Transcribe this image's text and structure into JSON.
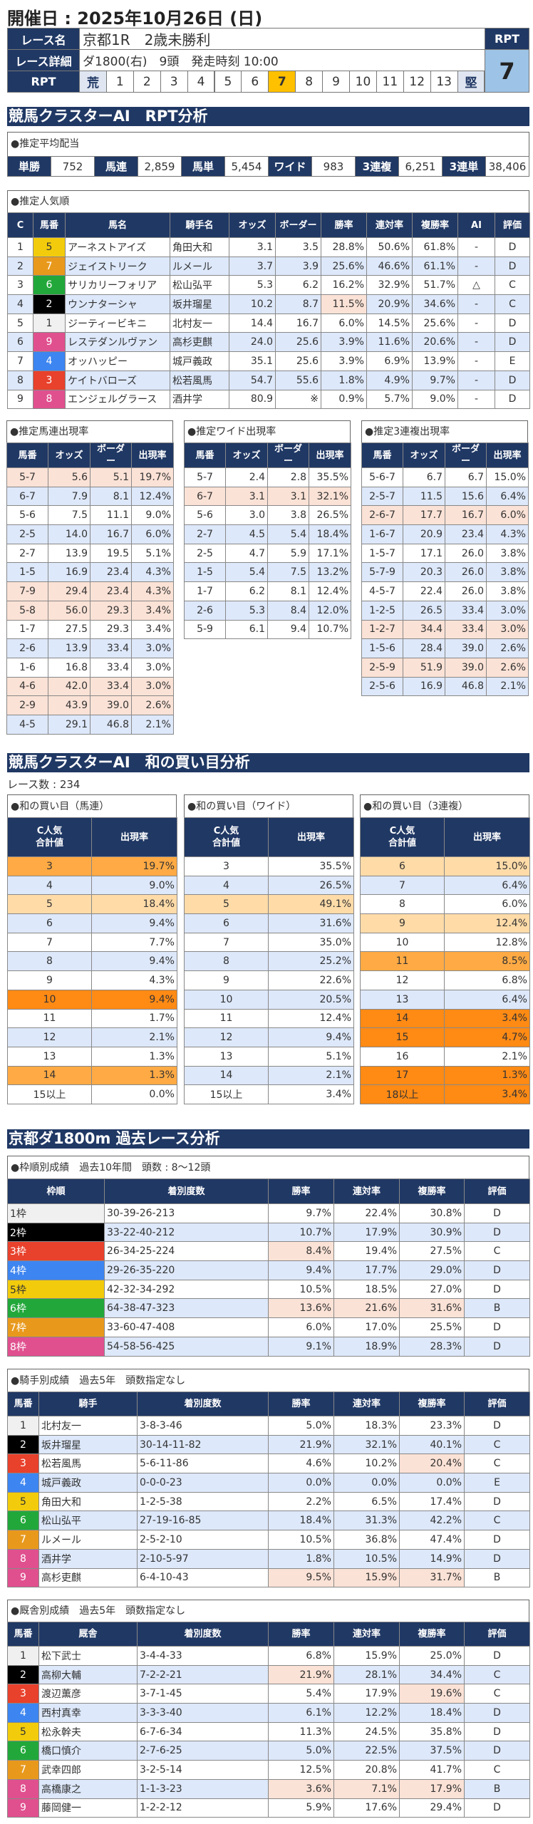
{
  "header": {
    "title": "開催日 : 2025年10月26日 (日)"
  },
  "race": {
    "labels": [
      "レース名",
      "レース詳細",
      "RPT"
    ],
    "name": "京都1R　2歳未勝利",
    "detail": "ダ1800(右)　9頭　発走時刻 10:00",
    "rpt_scale": [
      "荒",
      "1",
      "2",
      "3",
      "4",
      "5",
      "6",
      "7",
      "8",
      "9",
      "10",
      "11",
      "12",
      "13",
      "堅"
    ],
    "rpt_selected": "7",
    "rpt_label": "RPT",
    "rpt_value": "7"
  },
  "colors": {
    "navy": "#203864",
    "selected": "#ffc000",
    "rpt_value_bg": "#9dc3e6",
    "scale_end_bg": "#dfe6f2"
  },
  "waku_colors": {
    "1": [
      "#f0f0f0",
      "#333"
    ],
    "2": [
      "#000000",
      "#fff"
    ],
    "3": [
      "#e8412c",
      "#fff"
    ],
    "4": [
      "#3d85f0",
      "#fff"
    ],
    "5": [
      "#f2cc0c",
      "#333"
    ],
    "6": [
      "#22a83a",
      "#fff"
    ],
    "7": [
      "#e8991c",
      "#fff"
    ],
    "8": [
      "#e0508f",
      "#fff"
    ]
  },
  "rpt_section": {
    "title": "競馬クラスターAI　RPT分析"
  },
  "payout": {
    "title": "●推定平均配当",
    "items": [
      {
        "label": "単勝",
        "value": "752"
      },
      {
        "label": "馬連",
        "value": "2,859"
      },
      {
        "label": "馬単",
        "value": "5,454"
      },
      {
        "label": "ワイド",
        "value": "983"
      },
      {
        "label": "3連複",
        "value": "6,251"
      },
      {
        "label": "3連単",
        "value": "38,406"
      }
    ]
  },
  "popularity": {
    "title": "●推定人気順",
    "headers": [
      "C",
      "馬番",
      "馬名",
      "騎手名",
      "オッズ",
      "ボーダー",
      "勝率",
      "連対率",
      "複勝率",
      "AI",
      "評価"
    ],
    "rows": [
      {
        "cells": [
          "1",
          "5",
          "アーネストアイズ",
          "角田大和",
          "3.1",
          "3.5",
          "28.8%",
          "50.6%",
          "61.8%",
          "-",
          "D"
        ]
      },
      {
        "cells": [
          "2",
          "7",
          "ジェイストリーク",
          "ルメール",
          "3.7",
          "3.9",
          "25.6%",
          "46.6%",
          "61.1%",
          "-",
          "D"
        ]
      },
      {
        "cells": [
          "3",
          "6",
          "サリカリーフォリア",
          "松山弘平",
          "5.3",
          "6.2",
          "16.2%",
          "32.9%",
          "51.7%",
          "△",
          "C"
        ]
      },
      {
        "cells": [
          "4",
          "2",
          "ウンナターシャ",
          "坂井瑠星",
          "10.2",
          "8.7",
          "11.5%",
          "20.9%",
          "34.6%",
          "-",
          "C"
        ],
        "hl": [
          6
        ]
      },
      {
        "cells": [
          "5",
          "1",
          "ジーティービキニ",
          "北村友一",
          "14.4",
          "16.7",
          "6.0%",
          "14.5%",
          "25.6%",
          "-",
          "D"
        ]
      },
      {
        "cells": [
          "6",
          "9",
          "レステダンルヴァン",
          "高杉吏麒",
          "24.0",
          "25.6",
          "3.9%",
          "11.6%",
          "20.6%",
          "-",
          "D"
        ]
      },
      {
        "cells": [
          "7",
          "4",
          "オッハッピー",
          "城戸義政",
          "35.1",
          "25.6",
          "3.9%",
          "6.9%",
          "13.9%",
          "-",
          "E"
        ]
      },
      {
        "cells": [
          "8",
          "3",
          "ケイトバローズ",
          "松若風馬",
          "54.7",
          "55.6",
          "1.8%",
          "4.9%",
          "9.7%",
          "-",
          "D"
        ]
      },
      {
        "cells": [
          "9",
          "8",
          "エンジェルグラース",
          "酒井学",
          "80.9",
          "※",
          "0.9%",
          "5.7%",
          "9.0%",
          "-",
          "D"
        ]
      }
    ]
  },
  "umaren": {
    "title": "●推定馬連出現率",
    "headers": [
      "馬番",
      "オッズ",
      "ボーダー",
      "出現率"
    ],
    "rows": [
      {
        "cells": [
          "5-7",
          "5.6",
          "5.1",
          "19.7%"
        ],
        "bg": "p"
      },
      {
        "cells": [
          "6-7",
          "7.9",
          "8.1",
          "12.4%"
        ]
      },
      {
        "cells": [
          "5-6",
          "7.5",
          "11.1",
          "9.0%"
        ]
      },
      {
        "cells": [
          "2-5",
          "14.0",
          "16.7",
          "6.0%"
        ]
      },
      {
        "cells": [
          "2-7",
          "13.9",
          "19.5",
          "5.1%"
        ]
      },
      {
        "cells": [
          "1-5",
          "16.9",
          "23.4",
          "4.3%"
        ]
      },
      {
        "cells": [
          "7-9",
          "29.4",
          "23.4",
          "4.3%"
        ],
        "bg": "p"
      },
      {
        "cells": [
          "5-8",
          "56.0",
          "29.3",
          "3.4%"
        ],
        "bg": "p"
      },
      {
        "cells": [
          "1-7",
          "27.5",
          "29.3",
          "3.4%"
        ]
      },
      {
        "cells": [
          "2-6",
          "13.9",
          "33.4",
          "3.0%"
        ]
      },
      {
        "cells": [
          "1-6",
          "16.8",
          "33.4",
          "3.0%"
        ]
      },
      {
        "cells": [
          "4-6",
          "42.0",
          "33.4",
          "3.0%"
        ],
        "bg": "p"
      },
      {
        "cells": [
          "2-9",
          "43.9",
          "39.0",
          "2.6%"
        ],
        "bg": "p"
      },
      {
        "cells": [
          "4-5",
          "29.1",
          "46.8",
          "2.1%"
        ]
      }
    ]
  },
  "wide": {
    "title": "●推定ワイド出現率",
    "headers": [
      "馬番",
      "オッズ",
      "ボーダー",
      "出現率"
    ],
    "rows": [
      {
        "cells": [
          "5-7",
          "2.4",
          "2.8",
          "35.5%"
        ]
      },
      {
        "cells": [
          "6-7",
          "3.1",
          "3.1",
          "32.1%"
        ],
        "bg": "p"
      },
      {
        "cells": [
          "5-6",
          "3.0",
          "3.8",
          "26.5%"
        ]
      },
      {
        "cells": [
          "2-7",
          "4.5",
          "5.4",
          "18.4%"
        ]
      },
      {
        "cells": [
          "2-5",
          "4.7",
          "5.9",
          "17.1%"
        ]
      },
      {
        "cells": [
          "1-5",
          "5.4",
          "7.5",
          "13.2%"
        ]
      },
      {
        "cells": [
          "1-7",
          "6.2",
          "8.1",
          "12.4%"
        ]
      },
      {
        "cells": [
          "2-6",
          "5.3",
          "8.4",
          "12.0%"
        ]
      },
      {
        "cells": [
          "5-9",
          "6.1",
          "9.4",
          "10.7%"
        ]
      }
    ]
  },
  "sanrenpuku": {
    "title": "●推定3連複出現率",
    "headers": [
      "馬番",
      "オッズ",
      "ボーダー",
      "出現率"
    ],
    "rows": [
      {
        "cells": [
          "5-6-7",
          "6.7",
          "6.7",
          "15.0%"
        ]
      },
      {
        "cells": [
          "2-5-7",
          "11.5",
          "15.6",
          "6.4%"
        ]
      },
      {
        "cells": [
          "2-6-7",
          "17.7",
          "16.7",
          "6.0%"
        ],
        "bg": "p"
      },
      {
        "cells": [
          "1-6-7",
          "20.9",
          "23.4",
          "4.3%"
        ]
      },
      {
        "cells": [
          "1-5-7",
          "17.1",
          "26.0",
          "3.8%"
        ]
      },
      {
        "cells": [
          "5-7-9",
          "20.3",
          "26.0",
          "3.8%"
        ]
      },
      {
        "cells": [
          "4-5-7",
          "22.4",
          "26.0",
          "3.8%"
        ]
      },
      {
        "cells": [
          "1-2-5",
          "26.5",
          "33.4",
          "3.0%"
        ]
      },
      {
        "cells": [
          "1-2-7",
          "34.4",
          "33.4",
          "3.0%"
        ],
        "bg": "p"
      },
      {
        "cells": [
          "1-5-6",
          "28.4",
          "39.0",
          "2.6%"
        ]
      },
      {
        "cells": [
          "2-5-9",
          "51.9",
          "39.0",
          "2.6%"
        ],
        "bg": "p"
      },
      {
        "cells": [
          "2-5-6",
          "16.9",
          "46.8",
          "2.1%"
        ]
      }
    ]
  },
  "wa_section": {
    "title": "競馬クラスターAI　和の買い目分析",
    "race_count": "レース数 : 234"
  },
  "wa_umaren": {
    "title": "●和の買い目（馬連）",
    "headers": [
      "C人気\n合計値",
      "出現率"
    ],
    "rows": [
      {
        "cells": [
          "3",
          "19.7%"
        ],
        "bg": "o2"
      },
      {
        "cells": [
          "4",
          "9.0%"
        ]
      },
      {
        "cells": [
          "5",
          "18.4%"
        ],
        "bg": "o1"
      },
      {
        "cells": [
          "6",
          "9.4%"
        ]
      },
      {
        "cells": [
          "7",
          "7.7%"
        ]
      },
      {
        "cells": [
          "8",
          "9.4%"
        ]
      },
      {
        "cells": [
          "9",
          "4.3%"
        ]
      },
      {
        "cells": [
          "10",
          "9.4%"
        ],
        "bg": "o3"
      },
      {
        "cells": [
          "11",
          "1.7%"
        ]
      },
      {
        "cells": [
          "12",
          "2.1%"
        ]
      },
      {
        "cells": [
          "13",
          "1.3%"
        ]
      },
      {
        "cells": [
          "14",
          "1.3%"
        ],
        "bg": "o2"
      },
      {
        "cells": [
          "15以上",
          "0.0%"
        ]
      }
    ]
  },
  "wa_wide": {
    "title": "●和の買い目（ワイド）",
    "headers": [
      "C人気\n合計値",
      "出現率"
    ],
    "rows": [
      {
        "cells": [
          "3",
          "35.5%"
        ]
      },
      {
        "cells": [
          "4",
          "26.5%"
        ]
      },
      {
        "cells": [
          "5",
          "49.1%"
        ],
        "bg": "o1"
      },
      {
        "cells": [
          "6",
          "31.6%"
        ]
      },
      {
        "cells": [
          "7",
          "35.0%"
        ]
      },
      {
        "cells": [
          "8",
          "25.2%"
        ]
      },
      {
        "cells": [
          "9",
          "22.6%"
        ]
      },
      {
        "cells": [
          "10",
          "20.5%"
        ]
      },
      {
        "cells": [
          "11",
          "12.4%"
        ]
      },
      {
        "cells": [
          "12",
          "9.4%"
        ]
      },
      {
        "cells": [
          "13",
          "5.1%"
        ]
      },
      {
        "cells": [
          "14",
          "2.1%"
        ]
      },
      {
        "cells": [
          "15以上",
          "3.4%"
        ]
      }
    ]
  },
  "wa_sanrenpuku": {
    "title": "●和の買い目（3連複）",
    "headers": [
      "C人気\n合計値",
      "出現率"
    ],
    "rows": [
      {
        "cells": [
          "6",
          "15.0%"
        ],
        "bg": "o1"
      },
      {
        "cells": [
          "7",
          "6.4%"
        ]
      },
      {
        "cells": [
          "8",
          "6.0%"
        ]
      },
      {
        "cells": [
          "9",
          "12.4%"
        ],
        "bg": "o1"
      },
      {
        "cells": [
          "10",
          "12.8%"
        ]
      },
      {
        "cells": [
          "11",
          "8.5%"
        ],
        "bg": "o2"
      },
      {
        "cells": [
          "12",
          "6.8%"
        ]
      },
      {
        "cells": [
          "13",
          "6.4%"
        ]
      },
      {
        "cells": [
          "14",
          "3.4%"
        ],
        "bg": "o3"
      },
      {
        "cells": [
          "15",
          "4.7%"
        ],
        "bg": "o3"
      },
      {
        "cells": [
          "16",
          "2.1%"
        ]
      },
      {
        "cells": [
          "17",
          "1.3%"
        ],
        "bg": "o3"
      },
      {
        "cells": [
          "18以上",
          "3.4%"
        ],
        "bg": "o3"
      }
    ]
  },
  "course_section": {
    "title": "京都ダ1800m 過去レース分析"
  },
  "waku_stats": {
    "title": "●枠順別成績　過去10年間　頭数 : 8～12頭",
    "headers": [
      "枠順",
      "着別度数",
      "勝率",
      "連対率",
      "複勝率",
      "評価"
    ],
    "rows": [
      {
        "cells": [
          "1枠",
          "30-39-26-213",
          "9.7%",
          "22.4%",
          "30.8%",
          "D"
        ]
      },
      {
        "cells": [
          "2枠",
          "33-22-40-212",
          "10.7%",
          "17.9%",
          "30.9%",
          "D"
        ]
      },
      {
        "cells": [
          "3枠",
          "26-34-25-224",
          "8.4%",
          "19.4%",
          "27.5%",
          "C"
        ],
        "hl": [
          2
        ]
      },
      {
        "cells": [
          "4枠",
          "29-26-35-220",
          "9.4%",
          "17.7%",
          "29.0%",
          "D"
        ]
      },
      {
        "cells": [
          "5枠",
          "42-32-34-292",
          "10.5%",
          "18.5%",
          "27.0%",
          "D"
        ]
      },
      {
        "cells": [
          "6枠",
          "64-38-47-323",
          "13.6%",
          "21.6%",
          "31.6%",
          "B"
        ],
        "hl": [
          2,
          3,
          4
        ]
      },
      {
        "cells": [
          "7枠",
          "33-60-47-408",
          "6.0%",
          "17.0%",
          "25.5%",
          "D"
        ]
      },
      {
        "cells": [
          "8枠",
          "54-58-56-425",
          "9.1%",
          "18.9%",
          "28.3%",
          "D"
        ]
      }
    ]
  },
  "jockey_stats": {
    "title": "●騎手別成績　過去5年　頭数指定なし",
    "headers": [
      "馬番",
      "騎手",
      "着別度数",
      "勝率",
      "連対率",
      "複勝率",
      "評価"
    ],
    "rows": [
      {
        "cells": [
          "1",
          "北村友一",
          "3-8-3-46",
          "5.0%",
          "18.3%",
          "23.3%",
          "D"
        ]
      },
      {
        "cells": [
          "2",
          "坂井瑠星",
          "30-14-11-82",
          "21.9%",
          "32.1%",
          "40.1%",
          "C"
        ]
      },
      {
        "cells": [
          "3",
          "松若風馬",
          "5-6-11-86",
          "4.6%",
          "10.2%",
          "20.4%",
          "C"
        ],
        "hl": [
          5
        ]
      },
      {
        "cells": [
          "4",
          "城戸義政",
          "0-0-0-23",
          "0.0%",
          "0.0%",
          "0.0%",
          "E"
        ]
      },
      {
        "cells": [
          "5",
          "角田大和",
          "1-2-5-38",
          "2.2%",
          "6.5%",
          "17.4%",
          "D"
        ]
      },
      {
        "cells": [
          "6",
          "松山弘平",
          "27-19-16-85",
          "18.4%",
          "31.3%",
          "42.2%",
          "C"
        ]
      },
      {
        "cells": [
          "7",
          "ルメール",
          "2-5-2-10",
          "10.5%",
          "36.8%",
          "47.4%",
          "D"
        ]
      },
      {
        "cells": [
          "8",
          "酒井学",
          "2-10-5-97",
          "1.8%",
          "10.5%",
          "14.9%",
          "D"
        ]
      },
      {
        "cells": [
          "9",
          "高杉吏麒",
          "6-4-10-43",
          "9.5%",
          "15.9%",
          "31.7%",
          "B"
        ],
        "hl": [
          3,
          4,
          5
        ]
      }
    ]
  },
  "trainer_stats": {
    "title": "●厩舎別成績　過去5年　頭数指定なし",
    "headers": [
      "馬番",
      "厩舎",
      "着別度数",
      "勝率",
      "連対率",
      "複勝率",
      "評価"
    ],
    "rows": [
      {
        "cells": [
          "1",
          "松下武士",
          "3-4-4-33",
          "6.8%",
          "15.9%",
          "25.0%",
          "D"
        ]
      },
      {
        "cells": [
          "2",
          "高柳大輔",
          "7-2-2-21",
          "21.9%",
          "28.1%",
          "34.4%",
          "C"
        ],
        "hl": [
          3
        ]
      },
      {
        "cells": [
          "3",
          "渡辺薫彦",
          "3-7-1-45",
          "5.4%",
          "17.9%",
          "19.6%",
          "C"
        ],
        "hl": [
          5
        ]
      },
      {
        "cells": [
          "4",
          "西村真幸",
          "3-3-3-40",
          "6.1%",
          "12.2%",
          "18.4%",
          "D"
        ]
      },
      {
        "cells": [
          "5",
          "松永幹夫",
          "6-7-6-34",
          "11.3%",
          "24.5%",
          "35.8%",
          "D"
        ]
      },
      {
        "cells": [
          "6",
          "橋口慎介",
          "2-7-6-25",
          "5.0%",
          "22.5%",
          "37.5%",
          "D"
        ]
      },
      {
        "cells": [
          "7",
          "武幸四郎",
          "3-2-5-14",
          "12.5%",
          "20.8%",
          "41.7%",
          "C"
        ]
      },
      {
        "cells": [
          "8",
          "高橋康之",
          "1-1-3-23",
          "3.6%",
          "7.1%",
          "17.9%",
          "B"
        ],
        "hl": [
          3,
          4,
          5
        ]
      },
      {
        "cells": [
          "9",
          "藤岡健一",
          "1-2-2-12",
          "5.9%",
          "17.6%",
          "29.4%",
          "D"
        ]
      }
    ]
  }
}
